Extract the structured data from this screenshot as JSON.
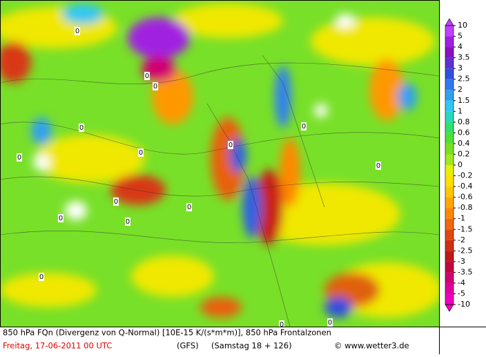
{
  "map": {
    "legend": {
      "levels": [
        10,
        5,
        4,
        3.5,
        3,
        2.5,
        2,
        1.5,
        1,
        0.8,
        0.6,
        0.4,
        0.2,
        0,
        -0.2,
        -0.4,
        -0.6,
        -0.8,
        -1,
        -1.5,
        -2,
        -2.5,
        -3,
        -3.5,
        -4,
        -5,
        -10
      ],
      "colors": [
        "#c040ff",
        "#a020e0",
        "#8a10c0",
        "#6030d0",
        "#3050e0",
        "#3078f0",
        "#30a0f0",
        "#30c8f0",
        "#28d8c0",
        "#30e070",
        "#50e030",
        "#78e020",
        "#a0e820",
        "#e8f000",
        "#ffe000",
        "#ffc800",
        "#ffa800",
        "#ff8800",
        "#f06810",
        "#e04810",
        "#d03010",
        "#c01818",
        "#c00840",
        "#d00070",
        "#e000a0",
        "#f000c0"
      ]
    },
    "contour_labels": [
      0,
      0,
      0,
      0,
      0,
      0,
      0,
      0,
      0,
      0,
      0,
      0,
      0,
      0,
      0,
      0
    ],
    "footer": {
      "line1": "850 hPa FQn (Divergenz von Q-Normal) [10E-15 K/(s*m*m)], 850 hPa Frontalzonen",
      "date": "Freitag, 17-06-2011  00 UTC",
      "model": "(GFS)",
      "run": "(Samstag 18 + 126)",
      "copyright": "© www.wetter3.de"
    }
  }
}
